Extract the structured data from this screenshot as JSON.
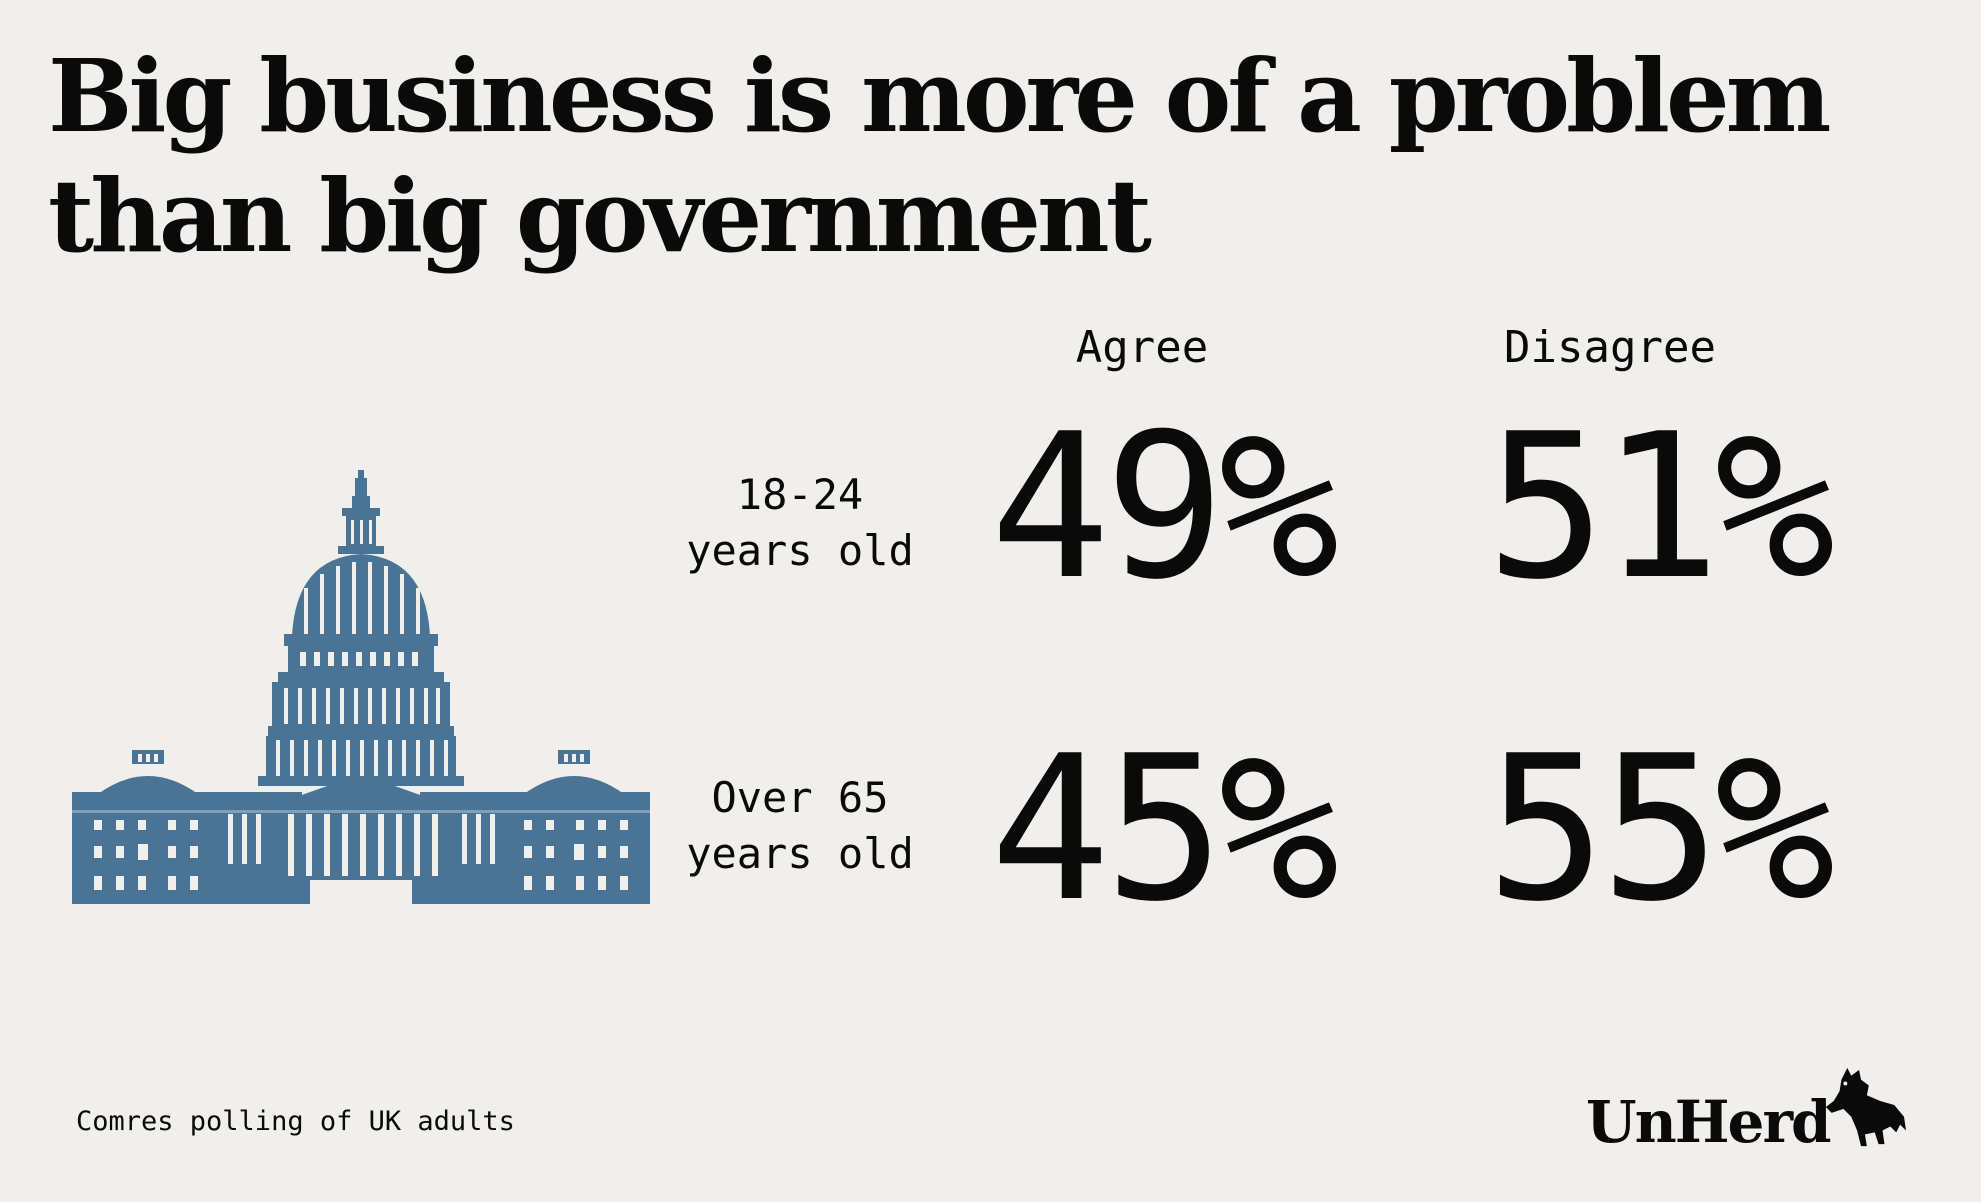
{
  "title_line1": "Big business is more of a problem",
  "title_line2": "than big government",
  "chart_data": {
    "type": "table",
    "title": "Big business is more of a problem than big government",
    "columns": [
      "Agree",
      "Disagree"
    ],
    "rows": [
      {
        "label_line1": "18-24",
        "label_line2": "years old",
        "agree": "49%",
        "disagree": "51%"
      },
      {
        "label_line1": "Over 65",
        "label_line2": "years old",
        "agree": "45%",
        "disagree": "55%"
      }
    ]
  },
  "source": "Comres polling of UK adults",
  "logo_text": "UnHerd",
  "illustration": {
    "icon": "capitol-building-icon",
    "color": "#4a7396"
  }
}
